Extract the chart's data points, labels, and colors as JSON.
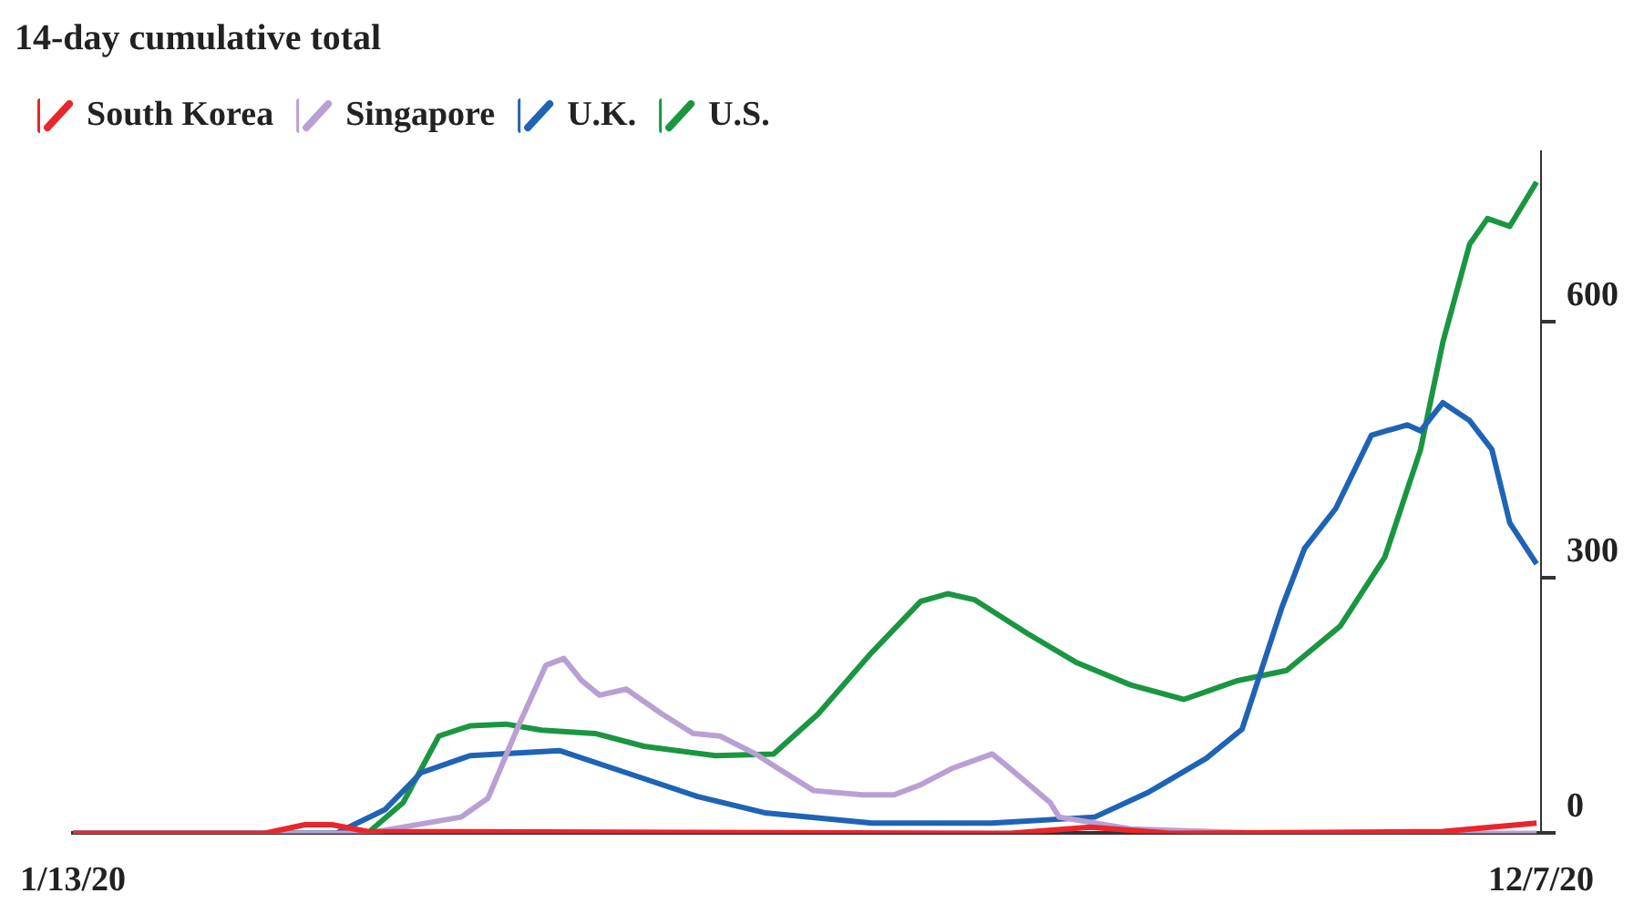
{
  "chart_data": {
    "type": "line",
    "title": "14-day cumulative total",
    "legend": "top left",
    "grid": false,
    "marker": "none",
    "line_style": "solid",
    "xlim": [
      "2020-01-13",
      "2020-12-07"
    ],
    "xticks": [
      {
        "value": "2020-01-13",
        "label": "1/13/20"
      },
      {
        "value": "2020-12-07",
        "label": "12/7/20"
      }
    ],
    "ylim": [
      0,
      800
    ],
    "yticks": [
      0,
      300,
      600
    ],
    "series": [
      {
        "name": "South Korea",
        "color": "#e8262b",
        "x": [
          "2020-01-13",
          "2020-02-25",
          "2020-03-05",
          "2020-03-11",
          "2020-03-19",
          "2020-08-10",
          "2020-08-28",
          "2020-09-15",
          "2020-11-15",
          "2020-12-06"
        ],
        "values": [
          0,
          0,
          10,
          10,
          2,
          0,
          7,
          0,
          2,
          12
        ]
      },
      {
        "name": "Singapore",
        "color": "#b9a0d4",
        "x": [
          "2020-01-13",
          "2020-03-19",
          "2020-04-09",
          "2020-04-15",
          "2020-04-22",
          "2020-04-28",
          "2020-05-02",
          "2020-05-06",
          "2020-05-10",
          "2020-05-16",
          "2020-05-24",
          "2020-05-31",
          "2020-06-06",
          "2020-06-14",
          "2020-06-19",
          "2020-06-27",
          "2020-07-08",
          "2020-07-15",
          "2020-07-21",
          "2020-07-28",
          "2020-08-06",
          "2020-08-10",
          "2020-08-19",
          "2020-08-21",
          "2020-09-06",
          "2020-10-07",
          "2020-12-06"
        ],
        "values": [
          0,
          0,
          19,
          41,
          128,
          197,
          205,
          179,
          162,
          169,
          140,
          117,
          114,
          93,
          76,
          50,
          45,
          45,
          57,
          76,
          93,
          76,
          36,
          19,
          5,
          0,
          0
        ]
      },
      {
        "name": "U.K.",
        "color": "#1f63b5",
        "x": [
          "2020-01-13",
          "2020-03-12",
          "2020-03-23",
          "2020-03-31",
          "2020-04-11",
          "2020-05-01",
          "2020-05-16",
          "2020-06-01",
          "2020-06-16",
          "2020-07-10",
          "2020-08-06",
          "2020-08-29",
          "2020-09-10",
          "2020-09-23",
          "2020-10-01",
          "2020-10-05",
          "2020-10-10",
          "2020-10-15",
          "2020-10-22",
          "2020-10-30",
          "2020-11-07",
          "2020-11-10",
          "2020-11-15",
          "2020-11-21",
          "2020-11-26",
          "2020-11-30",
          "2020-12-06"
        ],
        "values": [
          0,
          0,
          28,
          71,
          91,
          97,
          71,
          43,
          24,
          12,
          12,
          19,
          48,
          88,
          122,
          186,
          266,
          334,
          381,
          467,
          479,
          472,
          505,
          484,
          450,
          364,
          316
        ]
      },
      {
        "name": "U.S.",
        "color": "#1a9641",
        "x": [
          "2020-01-13",
          "2020-03-19",
          "2020-03-27",
          "2020-04-04",
          "2020-04-11",
          "2020-04-19",
          "2020-04-27",
          "2020-05-09",
          "2020-05-20",
          "2020-06-05",
          "2020-06-18",
          "2020-06-28",
          "2020-07-10",
          "2020-07-21",
          "2020-07-27",
          "2020-08-02",
          "2020-08-14",
          "2020-08-25",
          "2020-09-06",
          "2020-09-18",
          "2020-09-30",
          "2020-10-11",
          "2020-10-23",
          "2020-11-02",
          "2020-11-10",
          "2020-11-15",
          "2020-11-21",
          "2020-11-25",
          "2020-11-30",
          "2020-12-06"
        ],
        "values": [
          0,
          0,
          36,
          114,
          126,
          128,
          121,
          117,
          102,
          91,
          93,
          140,
          212,
          272,
          281,
          274,
          234,
          200,
          174,
          157,
          179,
          191,
          243,
          324,
          450,
          576,
          691,
          721,
          712,
          764
        ]
      }
    ]
  }
}
